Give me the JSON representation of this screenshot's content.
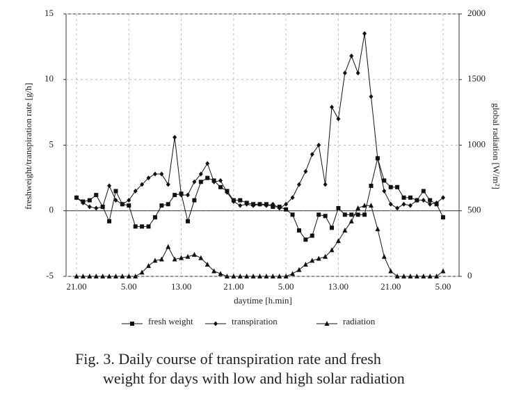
{
  "chart_data": {
    "type": "line",
    "categories": [
      "21.00",
      null,
      null,
      null,
      null,
      null,
      null,
      null,
      "5.00",
      null,
      null,
      null,
      null,
      null,
      null,
      null,
      "13.00",
      null,
      null,
      null,
      null,
      null,
      null,
      null,
      "21.00",
      null,
      null,
      null,
      null,
      null,
      null,
      null,
      "5.00",
      null,
      null,
      null,
      null,
      null,
      null,
      null,
      "13.00",
      null,
      null,
      null,
      null,
      null,
      null,
      null,
      "21.00",
      null,
      null,
      null,
      null,
      null,
      null,
      null,
      "5.00"
    ],
    "series": [
      {
        "name": "fresh weight",
        "color": "#111111",
        "marker": "square",
        "values": [
          1,
          0.7,
          0.8,
          1.2,
          0.3,
          -0.8,
          1.5,
          0.5,
          0.4,
          -1.2,
          -1.2,
          -1.2,
          -0.5,
          0.4,
          0.5,
          1.2,
          1.3,
          -0.8,
          0.8,
          2.2,
          2.5,
          2.3,
          1.8,
          1.5,
          0.8,
          0.8,
          0.6,
          0.5,
          0.5,
          0.5,
          0.3,
          0.3,
          0.1,
          -0.3,
          -1.5,
          -2.2,
          -1.9,
          -0.3,
          -0.4,
          -1.3,
          0.2,
          -0.3,
          -0.3,
          -0.3,
          -0.3,
          1.9,
          4,
          2.3,
          1.8,
          1.8,
          1,
          1,
          0.8,
          1.5,
          0.8,
          0.5,
          -0.5
        ]
      },
      {
        "name": "transpiration",
        "color": "#111111",
        "marker": "diamond",
        "values": [
          1,
          0.6,
          0.3,
          0.2,
          0.3,
          1.9,
          0.8,
          0.5,
          0.8,
          1.5,
          2,
          2.5,
          2.8,
          2.8,
          2,
          5.6,
          1.2,
          1.2,
          2.2,
          2.8,
          3.6,
          2.2,
          2.3,
          1.4,
          0.7,
          0.4,
          0.5,
          0.4,
          0.5,
          0.4,
          0.5,
          0.2,
          0.5,
          1,
          2,
          3,
          4.3,
          5,
          2,
          7.9,
          7,
          10.5,
          11.8,
          10.5,
          13.5,
          8.7,
          4,
          1.5,
          0.5,
          0.2,
          0.5,
          0.4,
          0.8,
          0.8,
          0.5,
          0.6,
          1
        ]
      },
      {
        "name": "radiation",
        "color": "#111111",
        "marker": "triangle",
        "axis": "y2",
        "values": [
          0,
          0,
          0,
          0,
          0,
          0,
          0,
          0,
          0,
          0,
          30,
          80,
          120,
          130,
          225,
          130,
          140,
          150,
          165,
          140,
          90,
          40,
          20,
          0,
          0,
          0,
          0,
          0,
          0,
          0,
          0,
          0,
          0,
          20,
          50,
          90,
          120,
          135,
          150,
          200,
          270,
          350,
          420,
          520,
          540,
          540,
          360,
          150,
          40,
          0,
          0,
          0,
          0,
          0,
          0,
          0,
          40
        ]
      }
    ],
    "ylim": [
      -5,
      15
    ],
    "yticks": [
      -5,
      0,
      5,
      10,
      15
    ],
    "y2lim": [
      0,
      2000
    ],
    "y2ticks": [
      0,
      500,
      1000,
      1500,
      2000
    ],
    "xlabel": "daytime [h.min]",
    "ylabel": "freshweight/transpiration rate [g/h]",
    "y2label": "global radiation [W/m²]",
    "grid": true,
    "legend": "bottom",
    "caption": [
      "Fig. 3. Daily course of transpiration rate and fresh",
      "weight for days with low and high solar radiation"
    ]
  }
}
